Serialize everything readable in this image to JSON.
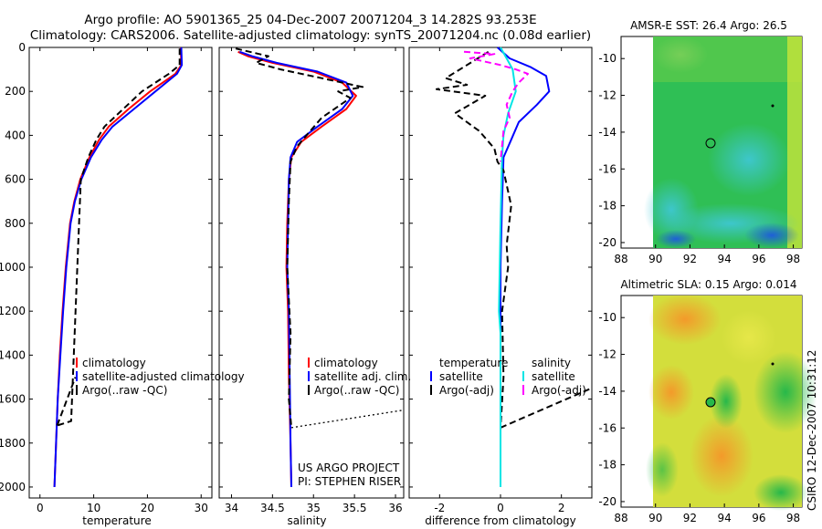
{
  "header": {
    "title_line1": "Argo profile: AO 5901365_25 04-Dec-2007 20071204_3 14.282S 93.253E",
    "title_line2": "Climatology: CARS2006. Satellite-adjusted climatology: synTS_20071204.nc (0.08d earlier)"
  },
  "colors": {
    "climatology": "#ff0000",
    "satellite_temp": "#0000ff",
    "argo": "#000000",
    "satellite_sal": "#00e5e5",
    "argo_sal": "#ff00ff"
  },
  "chart_data": [
    {
      "id": "temperature",
      "type": "line",
      "xlabel": "temperature",
      "xlim": [
        -2,
        32
      ],
      "ylim": [
        2050,
        0
      ],
      "xticks": [
        0,
        10,
        20,
        30
      ],
      "yticks": [
        0,
        200,
        400,
        600,
        800,
        1000,
        1200,
        1400,
        1600,
        1800,
        2000
      ],
      "legend": [
        "climatology",
        "satellite-adjusted climatology",
        "Argo(..raw -QC)"
      ],
      "series": [
        {
          "name": "climatology",
          "color": "#ff0000",
          "style": "solid",
          "x": [
            26.2,
            26.3,
            25.2,
            20.5,
            16.5,
            12.8,
            11.0,
            9.2,
            7.5,
            6.4,
            5.6,
            4.8,
            4.2,
            3.7,
            3.3,
            3.0,
            2.7
          ],
          "y": [
            0,
            80,
            120,
            200,
            280,
            360,
            420,
            500,
            600,
            700,
            800,
            1000,
            1200,
            1400,
            1600,
            1800,
            2000
          ]
        },
        {
          "name": "satellite-adjusted climatology",
          "color": "#0000ff",
          "style": "solid",
          "x": [
            26.3,
            26.4,
            25.5,
            21.5,
            17.5,
            13.5,
            11.5,
            9.5,
            7.7,
            6.5,
            5.7,
            4.9,
            4.3,
            3.8,
            3.3,
            3.0,
            2.7
          ],
          "y": [
            0,
            80,
            120,
            200,
            280,
            360,
            420,
            500,
            600,
            700,
            800,
            1000,
            1200,
            1400,
            1600,
            1800,
            2000
          ]
        },
        {
          "name": "Argo(..raw -QC)",
          "color": "#000000",
          "style": "dashed",
          "x": [
            26.0,
            26.0,
            24.0,
            19.0,
            15.5,
            12.0,
            10.5,
            9.0,
            7.6,
            5.8,
            3.2
          ],
          "y": [
            5,
            80,
            120,
            200,
            280,
            360,
            420,
            500,
            600,
            1700,
            1720
          ]
        },
        {
          "name": "Argo outlier segment",
          "color": "#000000",
          "style": "dashed",
          "x": [
            3.2,
            6.6
          ],
          "y": [
            1720,
            1500
          ]
        }
      ]
    },
    {
      "id": "salinity",
      "type": "line",
      "xlabel": "salinity",
      "xlim": [
        33.85,
        36.1
      ],
      "ylim": [
        2050,
        0
      ],
      "xticks": [
        34,
        34.5,
        35,
        35.5,
        36
      ],
      "yticks": [
        0,
        200,
        400,
        600,
        800,
        1000,
        1200,
        1400,
        1600,
        1800,
        2000
      ],
      "legend": [
        "climatology",
        "satellite adj. clim.",
        "Argo(..raw -QC)"
      ],
      "annotation_line1": "US ARGO PROJECT",
      "annotation_line2": "PI: STEPHEN RISER",
      "series": [
        {
          "name": "climatology",
          "color": "#ff0000",
          "style": "solid",
          "x": [
            34.08,
            34.2,
            34.5,
            35.0,
            35.35,
            35.52,
            35.4,
            35.1,
            34.85,
            34.73,
            34.7,
            34.68,
            34.67,
            34.69,
            34.7,
            34.72,
            34.73
          ],
          "y": [
            20,
            40,
            70,
            110,
            160,
            220,
            280,
            360,
            430,
            500,
            600,
            800,
            1000,
            1200,
            1500,
            1800,
            2000
          ]
        },
        {
          "name": "satellite adj. clim.",
          "color": "#0000ff",
          "style": "solid",
          "x": [
            34.1,
            34.25,
            34.55,
            35.05,
            35.4,
            35.48,
            35.35,
            35.05,
            34.8,
            34.72,
            34.7,
            34.69,
            34.68,
            34.7,
            34.71,
            34.72,
            34.73
          ],
          "y": [
            20,
            40,
            70,
            110,
            160,
            220,
            280,
            360,
            430,
            500,
            600,
            800,
            1000,
            1200,
            1500,
            1800,
            2000
          ]
        },
        {
          "name": "Argo(..raw -QC)",
          "color": "#000000",
          "style": "dashed",
          "x": [
            34.05,
            34.45,
            34.3,
            34.6,
            35.1,
            35.6,
            35.3,
            35.45,
            35.1,
            34.8,
            34.72,
            34.7,
            34.68,
            34.72,
            34.7,
            34.73
          ],
          "y": [
            5,
            40,
            70,
            100,
            140,
            180,
            200,
            230,
            320,
            450,
            520,
            700,
            1000,
            1300,
            1600,
            1730
          ]
        },
        {
          "name": "Argo outlier segment",
          "color": "#000000",
          "style": "dotted",
          "x": [
            34.73,
            36.1
          ],
          "y": [
            1730,
            1650
          ]
        }
      ]
    },
    {
      "id": "difference",
      "type": "line",
      "xlabel": "difference from climatology",
      "xlim": [
        -3,
        3
      ],
      "ylim": [
        2050,
        0
      ],
      "xticks": [
        -2,
        0,
        2
      ],
      "yticks": [
        0,
        200,
        400,
        600,
        800,
        1000,
        1200,
        1400,
        1600,
        1800,
        2000
      ],
      "legend_left": [
        "temperature",
        "satellite",
        "Argo(-adj)"
      ],
      "legend_right": [
        "salinity",
        "satellite",
        "Argo(-adj)"
      ],
      "series": [
        {
          "name": "temperature satellite",
          "color": "#0000ff",
          "style": "solid",
          "x": [
            -0.1,
            0.3,
            1.0,
            1.5,
            1.6,
            1.2,
            0.6,
            0.35,
            0.1,
            0.05,
            0.0,
            0.0,
            0.0
          ],
          "y": [
            0,
            50,
            90,
            130,
            200,
            260,
            340,
            420,
            500,
            700,
            1000,
            1500,
            2000
          ]
        },
        {
          "name": "temperature Argo(-adj)",
          "color": "#000000",
          "style": "dashed",
          "x": [
            -0.4,
            -1.8,
            -1.1,
            -2.1,
            -0.5,
            -1.5,
            -0.7,
            -0.2,
            -0.1,
            0.1,
            0.35,
            0.2,
            0.25,
            0.05,
            0.1,
            0.0
          ],
          "y": [
            20,
            140,
            170,
            190,
            220,
            300,
            380,
            460,
            520,
            560,
            720,
            900,
            1000,
            1200,
            1500,
            1730
          ]
        },
        {
          "name": "temperature Argo outlier",
          "color": "#000000",
          "style": "dashed",
          "x": [
            0.0,
            3.0
          ],
          "y": [
            1730,
            1550
          ]
        },
        {
          "name": "salinity satellite",
          "color": "#00e5e5",
          "style": "solid",
          "x": [
            0.0,
            0.2,
            0.4,
            0.5,
            0.25,
            0.1,
            0.05,
            0.0,
            -0.05,
            0.0,
            0.0,
            0.0
          ],
          "y": [
            0,
            50,
            100,
            200,
            300,
            400,
            500,
            800,
            1200,
            1300,
            1600,
            2000
          ]
        },
        {
          "name": "salinity Argo(-adj)",
          "color": "#ff00ff",
          "style": "dashed",
          "x": [
            -1.2,
            -0.2,
            -1.0,
            0.0,
            0.5,
            0.9,
            0.6,
            0.4,
            0.2,
            0.3,
            0.1,
            0.05,
            0.0
          ],
          "y": [
            20,
            30,
            50,
            80,
            100,
            120,
            160,
            200,
            260,
            320,
            380,
            450,
            520
          ]
        }
      ]
    },
    {
      "id": "sst_map",
      "type": "heatmap",
      "title": "AMSR-E SST: 26.4 Argo: 26.5",
      "xlim": [
        88,
        98.5
      ],
      "ylim": [
        -20.3,
        -8.8
      ],
      "xticks": [
        88,
        90,
        92,
        94,
        96,
        98
      ],
      "yticks": [
        -10,
        -12,
        -14,
        -16,
        -18,
        -20
      ],
      "data_extent_x": [
        90,
        98.5
      ],
      "argo_position": {
        "lon": 93.253,
        "lat": -14.282
      }
    },
    {
      "id": "sla_map",
      "type": "heatmap",
      "title": "Altimetric SLA: 0.15 Argo: 0.014",
      "xlim": [
        88,
        98.5
      ],
      "ylim": [
        -20.3,
        -8.8
      ],
      "xticks": [
        88,
        90,
        92,
        94,
        96,
        98
      ],
      "yticks": [
        -10,
        -12,
        -14,
        -16,
        -18,
        -20
      ],
      "data_extent_x": [
        90,
        98.5
      ],
      "argo_position": {
        "lon": 93.253,
        "lat": -14.282
      }
    }
  ],
  "footer": {
    "credit": "CSIRO 12-Dec-2007 10:31:12"
  }
}
